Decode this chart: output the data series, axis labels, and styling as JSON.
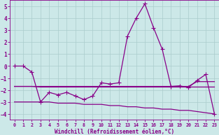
{
  "x": [
    0,
    1,
    2,
    3,
    4,
    5,
    6,
    7,
    8,
    9,
    10,
    11,
    12,
    13,
    14,
    15,
    16,
    17,
    18,
    19,
    20,
    21,
    22,
    23
  ],
  "line_main": [
    0,
    0,
    -0.5,
    -3.0,
    -2.2,
    -2.4,
    -2.2,
    -2.5,
    -2.8,
    -2.5,
    -1.4,
    -1.5,
    -1.4,
    2.5,
    4.0,
    5.2,
    3.2,
    1.4,
    -1.7,
    -1.65,
    -1.8,
    -1.2,
    -0.7,
    -4.0
  ],
  "line_upper_flat": [
    -1.7,
    -1.7,
    -1.7,
    -1.7,
    -1.7,
    -1.7,
    -1.7,
    -1.7,
    -1.7,
    -1.7,
    -1.7,
    -1.7,
    -1.7,
    -1.7,
    -1.7,
    -1.7,
    -1.7,
    -1.7,
    -1.7,
    -1.7,
    -1.7,
    -1.3,
    -1.3,
    -1.3
  ],
  "line_mid_flat": [
    -1.7,
    -1.7,
    -1.7,
    -1.75,
    -1.75,
    -1.75,
    -1.75,
    -1.75,
    -1.75,
    -1.75,
    -1.75,
    -1.75,
    -1.75,
    -1.75,
    -1.75,
    -1.75,
    -1.75,
    -1.75,
    -1.75,
    -1.75,
    -1.75,
    -1.75,
    -1.75,
    -1.75
  ],
  "line_lower_flat": [
    -3.0,
    -3.0,
    -3.0,
    -3.0,
    -3.0,
    -3.1,
    -3.1,
    -3.1,
    -3.2,
    -3.2,
    -3.2,
    -3.3,
    -3.3,
    -3.4,
    -3.4,
    -3.5,
    -3.5,
    -3.6,
    -3.6,
    -3.7,
    -3.7,
    -3.8,
    -3.9,
    -4.0
  ],
  "bg_color": "#cce8e8",
  "grid_color": "#aacccc",
  "line_color": "#880088",
  "marker": "+",
  "xlabel": "Windchill (Refroidissement éolien,°C)",
  "xlim": [
    -0.5,
    23.5
  ],
  "ylim": [
    -4.5,
    5.5
  ],
  "yticks": [
    -4,
    -3,
    -2,
    -1,
    0,
    1,
    2,
    3,
    4,
    5
  ],
  "xticks": [
    0,
    1,
    2,
    3,
    4,
    5,
    6,
    7,
    8,
    9,
    10,
    11,
    12,
    13,
    14,
    15,
    16,
    17,
    18,
    19,
    20,
    21,
    22,
    23
  ]
}
